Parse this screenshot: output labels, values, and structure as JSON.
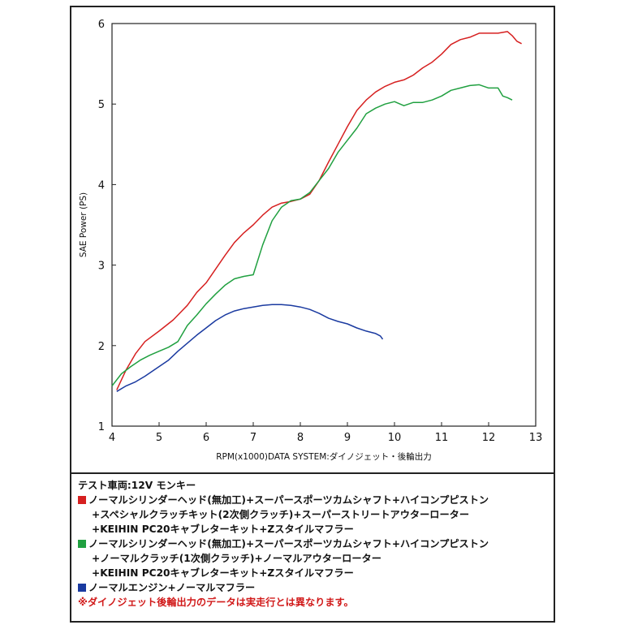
{
  "chart_data": {
    "type": "line",
    "xlabel": "RPM(x1000)DATA SYSTEM:ダイノジェット・後輪出力",
    "ylabel": "SAE Power (PS)",
    "xlim": [
      4,
      13
    ],
    "ylim": [
      1,
      6
    ],
    "xticks": [
      4,
      5,
      6,
      7,
      8,
      9,
      10,
      11,
      12,
      13
    ],
    "yticks": [
      1,
      2,
      3,
      4,
      5,
      6
    ],
    "grid": false,
    "series": [
      {
        "color": "#d62020",
        "points": [
          [
            4.1,
            1.45
          ],
          [
            4.3,
            1.7
          ],
          [
            4.5,
            1.9
          ],
          [
            4.7,
            2.05
          ],
          [
            5.0,
            2.18
          ],
          [
            5.3,
            2.32
          ],
          [
            5.6,
            2.5
          ],
          [
            5.8,
            2.66
          ],
          [
            6.0,
            2.78
          ],
          [
            6.2,
            2.95
          ],
          [
            6.4,
            3.12
          ],
          [
            6.6,
            3.28
          ],
          [
            6.8,
            3.4
          ],
          [
            7.0,
            3.5
          ],
          [
            7.2,
            3.62
          ],
          [
            7.4,
            3.72
          ],
          [
            7.6,
            3.77
          ],
          [
            7.8,
            3.79
          ],
          [
            8.0,
            3.82
          ],
          [
            8.2,
            3.88
          ],
          [
            8.4,
            4.05
          ],
          [
            8.6,
            4.28
          ],
          [
            8.8,
            4.5
          ],
          [
            9.0,
            4.72
          ],
          [
            9.2,
            4.92
          ],
          [
            9.4,
            5.05
          ],
          [
            9.6,
            5.15
          ],
          [
            9.8,
            5.22
          ],
          [
            10.0,
            5.27
          ],
          [
            10.2,
            5.3
          ],
          [
            10.4,
            5.36
          ],
          [
            10.6,
            5.45
          ],
          [
            10.8,
            5.52
          ],
          [
            11.0,
            5.62
          ],
          [
            11.2,
            5.74
          ],
          [
            11.4,
            5.8
          ],
          [
            11.6,
            5.83
          ],
          [
            11.8,
            5.88
          ],
          [
            12.0,
            5.88
          ],
          [
            12.2,
            5.88
          ],
          [
            12.4,
            5.9
          ],
          [
            12.5,
            5.85
          ],
          [
            12.6,
            5.78
          ],
          [
            12.7,
            5.75
          ]
        ]
      },
      {
        "color": "#20a040",
        "points": [
          [
            4.0,
            1.5
          ],
          [
            4.2,
            1.65
          ],
          [
            4.4,
            1.74
          ],
          [
            4.6,
            1.82
          ],
          [
            4.8,
            1.88
          ],
          [
            5.0,
            1.93
          ],
          [
            5.2,
            1.98
          ],
          [
            5.4,
            2.05
          ],
          [
            5.6,
            2.25
          ],
          [
            5.8,
            2.38
          ],
          [
            6.0,
            2.52
          ],
          [
            6.2,
            2.64
          ],
          [
            6.4,
            2.75
          ],
          [
            6.6,
            2.83
          ],
          [
            6.8,
            2.86
          ],
          [
            7.0,
            2.88
          ],
          [
            7.2,
            3.25
          ],
          [
            7.4,
            3.55
          ],
          [
            7.6,
            3.72
          ],
          [
            7.8,
            3.8
          ],
          [
            8.0,
            3.82
          ],
          [
            8.2,
            3.9
          ],
          [
            8.4,
            4.05
          ],
          [
            8.6,
            4.2
          ],
          [
            8.8,
            4.4
          ],
          [
            9.0,
            4.55
          ],
          [
            9.2,
            4.7
          ],
          [
            9.4,
            4.88
          ],
          [
            9.6,
            4.95
          ],
          [
            9.8,
            5.0
          ],
          [
            10.0,
            5.03
          ],
          [
            10.2,
            4.98
          ],
          [
            10.4,
            5.02
          ],
          [
            10.6,
            5.02
          ],
          [
            10.8,
            5.05
          ],
          [
            11.0,
            5.1
          ],
          [
            11.2,
            5.17
          ],
          [
            11.4,
            5.2
          ],
          [
            11.6,
            5.23
          ],
          [
            11.8,
            5.24
          ],
          [
            12.0,
            5.2
          ],
          [
            12.2,
            5.2
          ],
          [
            12.3,
            5.1
          ],
          [
            12.4,
            5.08
          ],
          [
            12.5,
            5.05
          ]
        ]
      },
      {
        "color": "#1a3aa0",
        "points": [
          [
            4.1,
            1.43
          ],
          [
            4.3,
            1.5
          ],
          [
            4.5,
            1.55
          ],
          [
            4.7,
            1.62
          ],
          [
            5.0,
            1.74
          ],
          [
            5.2,
            1.82
          ],
          [
            5.4,
            1.93
          ],
          [
            5.6,
            2.03
          ],
          [
            5.8,
            2.13
          ],
          [
            6.0,
            2.22
          ],
          [
            6.2,
            2.31
          ],
          [
            6.4,
            2.38
          ],
          [
            6.6,
            2.43
          ],
          [
            6.8,
            2.46
          ],
          [
            7.0,
            2.48
          ],
          [
            7.2,
            2.5
          ],
          [
            7.4,
            2.51
          ],
          [
            7.6,
            2.51
          ],
          [
            7.8,
            2.5
          ],
          [
            8.0,
            2.48
          ],
          [
            8.2,
            2.45
          ],
          [
            8.4,
            2.4
          ],
          [
            8.6,
            2.34
          ],
          [
            8.8,
            2.3
          ],
          [
            9.0,
            2.27
          ],
          [
            9.2,
            2.22
          ],
          [
            9.4,
            2.18
          ],
          [
            9.6,
            2.15
          ],
          [
            9.7,
            2.12
          ],
          [
            9.75,
            2.08
          ]
        ]
      }
    ]
  },
  "legend": {
    "vehicle": "テスト車両:12V モンキー",
    "red": {
      "color": "#d62020",
      "line1": "ノーマルシリンダーヘッド(無加工)+スーパースポーツカムシャフト+ハイコンプピストン",
      "line2": "+スペシャルクラッチキット(2次側クラッチ)+スーパーストリートアウターローター",
      "line3": "+KEIHIN PC20キャブレターキット+Zスタイルマフラー"
    },
    "green": {
      "color": "#20a040",
      "line1": "ノーマルシリンダーヘッド(無加工)+スーパースポーツカムシャフト+ハイコンプピストン",
      "line2": "+ノーマルクラッチ(1次側クラッチ)+ノーマルアウターローター",
      "line3": "+KEIHIN PC20キャブレターキット+Zスタイルマフラー"
    },
    "blue": {
      "color": "#1a3aa0",
      "line1": "ノーマルエンジン+ノーマルマフラー"
    },
    "note": "※ダイノジェット後輪出力のデータは実走行とは異なります。"
  }
}
